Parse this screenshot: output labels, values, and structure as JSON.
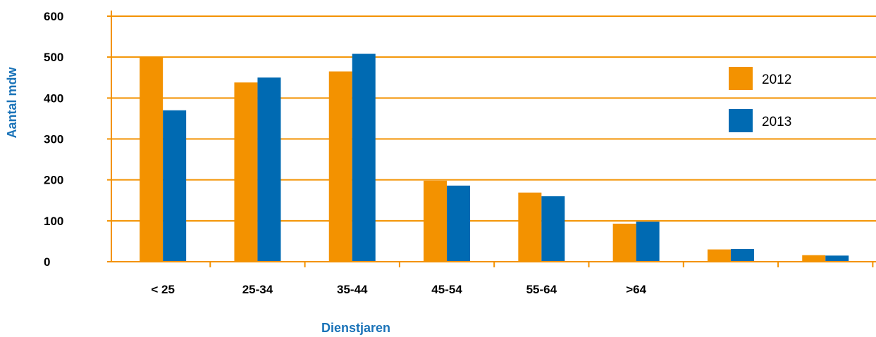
{
  "chart_data": {
    "type": "bar",
    "title": "",
    "xlabel": "Dienstjaren",
    "ylabel": "Aantal mdw",
    "ylim": [
      0,
      600
    ],
    "yticks": [
      0,
      100,
      200,
      300,
      400,
      500,
      600
    ],
    "categories": [
      "< 25",
      "25-34",
      "35-44",
      "45-54",
      "55-64",
      ">64",
      "",
      ""
    ],
    "series": [
      {
        "name": "2012",
        "color": "#f39200",
        "values": [
          501,
          438,
          465,
          198,
          169,
          93,
          30,
          16
        ]
      },
      {
        "name": "2013",
        "color": "#006ab2",
        "values": [
          370,
          450,
          508,
          186,
          160,
          98,
          31,
          15
        ]
      }
    ],
    "legend_position": "right",
    "grid": true,
    "axis_color": "#f39200"
  }
}
